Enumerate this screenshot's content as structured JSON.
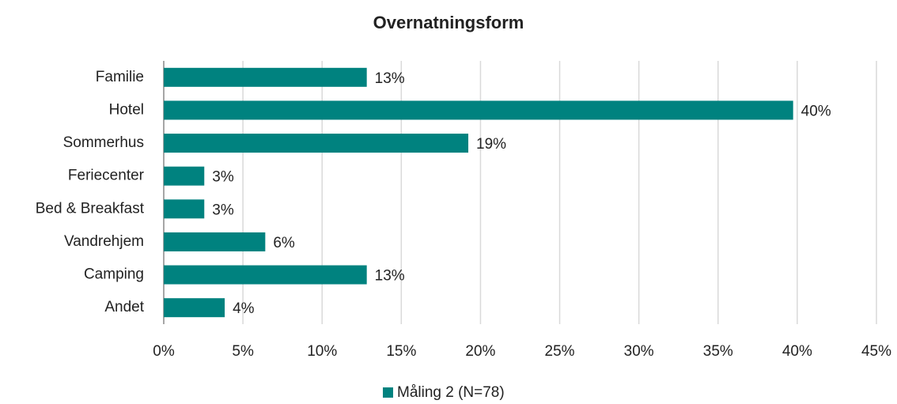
{
  "chart_data": {
    "type": "bar",
    "orientation": "horizontal",
    "title": "Overnatningsform",
    "categories": [
      "Familie",
      "Hotel",
      "Sommerhus",
      "Feriecenter",
      "Bed & Breakfast",
      "Vandrehjem",
      "Camping",
      "Andet"
    ],
    "series": [
      {
        "name": "Måling 2 (N=78)",
        "color": "#00827f",
        "values": [
          12.82,
          39.74,
          19.23,
          2.56,
          2.56,
          6.41,
          12.82,
          3.85
        ],
        "value_labels": [
          "13%",
          "40%",
          "19%",
          "3%",
          "3%",
          "6%",
          "13%",
          "4%"
        ]
      }
    ],
    "xlim": [
      0,
      45
    ],
    "xticks": [
      {
        "value": 0,
        "label": "0%"
      },
      {
        "value": 5,
        "label": "5%"
      },
      {
        "value": 10,
        "label": "10%"
      },
      {
        "value": 15,
        "label": "15%"
      },
      {
        "value": 20,
        "label": "20%"
      },
      {
        "value": 25,
        "label": "25%"
      },
      {
        "value": 30,
        "label": "30%"
      },
      {
        "value": 35,
        "label": "35%"
      },
      {
        "value": 40,
        "label": "40%"
      },
      {
        "value": 45,
        "label": "45%"
      }
    ],
    "grid": true,
    "legend": "bottom"
  }
}
